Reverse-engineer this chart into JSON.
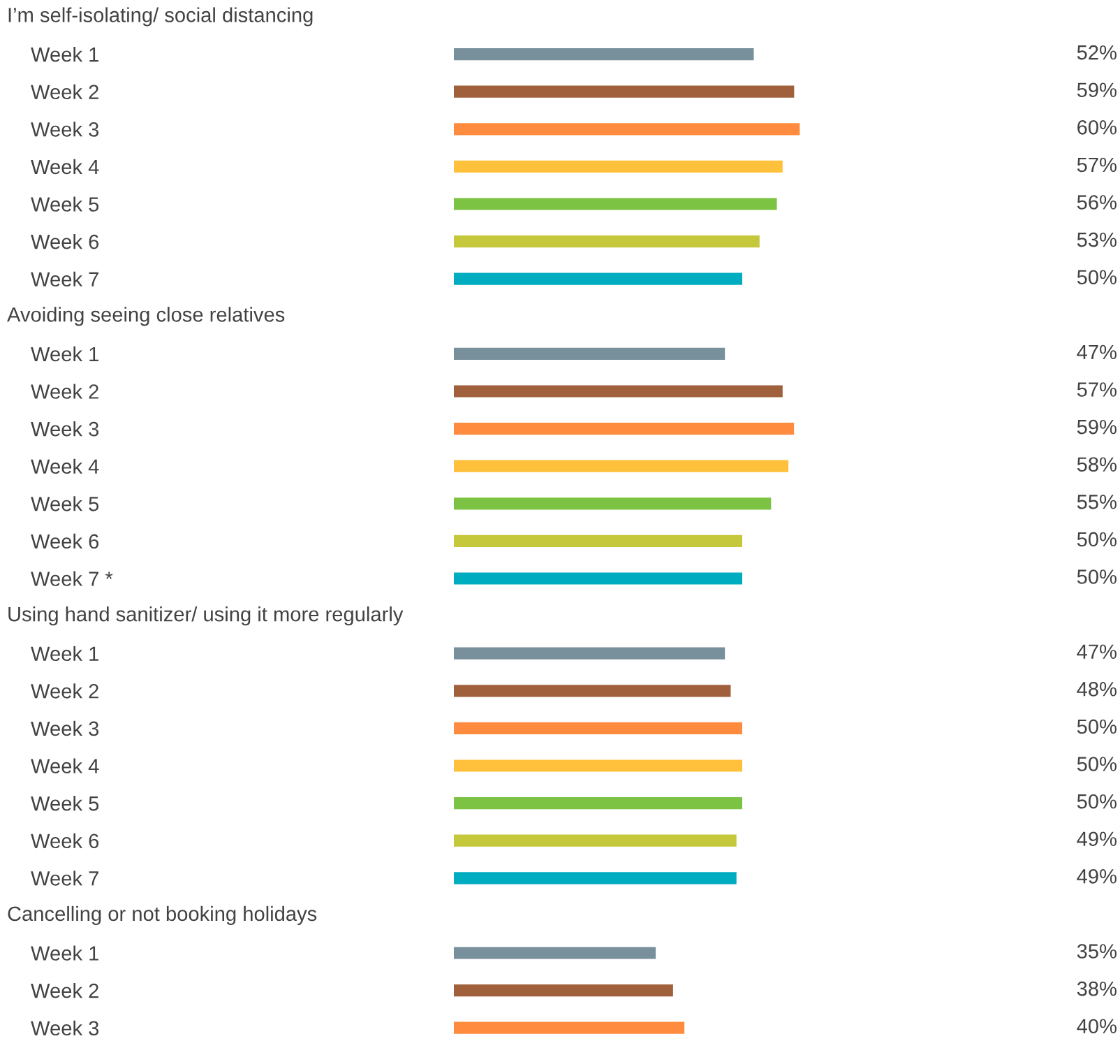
{
  "chart_data": [
    {
      "type": "bar",
      "orientation": "horizontal",
      "title": "I’m self-isolating/ social distancing",
      "categories": [
        "Week 1",
        "Week 2",
        "Week 3",
        "Week 4",
        "Week 5",
        "Week 6",
        "Week 7"
      ],
      "values": [
        52,
        59,
        60,
        57,
        56,
        53,
        50
      ],
      "value_labels": [
        "52%",
        "59%",
        "60%",
        "57%",
        "56%",
        "53%",
        "50%"
      ],
      "colors": [
        "#78909c",
        "#a0603c",
        "#ff8c3e",
        "#ffc13b",
        "#7cc243",
        "#c5c83a",
        "#00adc0"
      ],
      "grid": false,
      "legend": false
    },
    {
      "type": "bar",
      "orientation": "horizontal",
      "title": "Avoiding seeing close relatives",
      "categories": [
        "Week 1",
        "Week 2",
        "Week 3",
        "Week 4",
        "Week 5",
        "Week 6",
        "Week 7 *"
      ],
      "values": [
        47,
        57,
        59,
        58,
        55,
        50,
        50
      ],
      "value_labels": [
        "47%",
        "57%",
        "59%",
        "58%",
        "55%",
        "50%",
        "50%"
      ],
      "colors": [
        "#78909c",
        "#a0603c",
        "#ff8c3e",
        "#ffc13b",
        "#7cc243",
        "#c5c83a",
        "#00adc0"
      ],
      "grid": false,
      "legend": false
    },
    {
      "type": "bar",
      "orientation": "horizontal",
      "title": "Using hand sanitizer/ using it more regularly",
      "categories": [
        "Week 1",
        "Week 2",
        "Week 3",
        "Week 4",
        "Week 5",
        "Week 6",
        "Week 7"
      ],
      "values": [
        47,
        48,
        50,
        50,
        50,
        49,
        49
      ],
      "value_labels": [
        "47%",
        "48%",
        "50%",
        "50%",
        "50%",
        "49%",
        "49%"
      ],
      "colors": [
        "#78909c",
        "#a0603c",
        "#ff8c3e",
        "#ffc13b",
        "#7cc243",
        "#c5c83a",
        "#00adc0"
      ],
      "grid": false,
      "legend": false
    },
    {
      "type": "bar",
      "orientation": "horizontal",
      "title": "Cancelling or not booking holidays",
      "categories": [
        "Week 1",
        "Week 2",
        "Week 3"
      ],
      "values": [
        35,
        38,
        40
      ],
      "value_labels": [
        "35%",
        "38%",
        "40%"
      ],
      "colors": [
        "#78909c",
        "#a0603c",
        "#ff8c3e"
      ],
      "grid": false,
      "legend": false
    }
  ]
}
